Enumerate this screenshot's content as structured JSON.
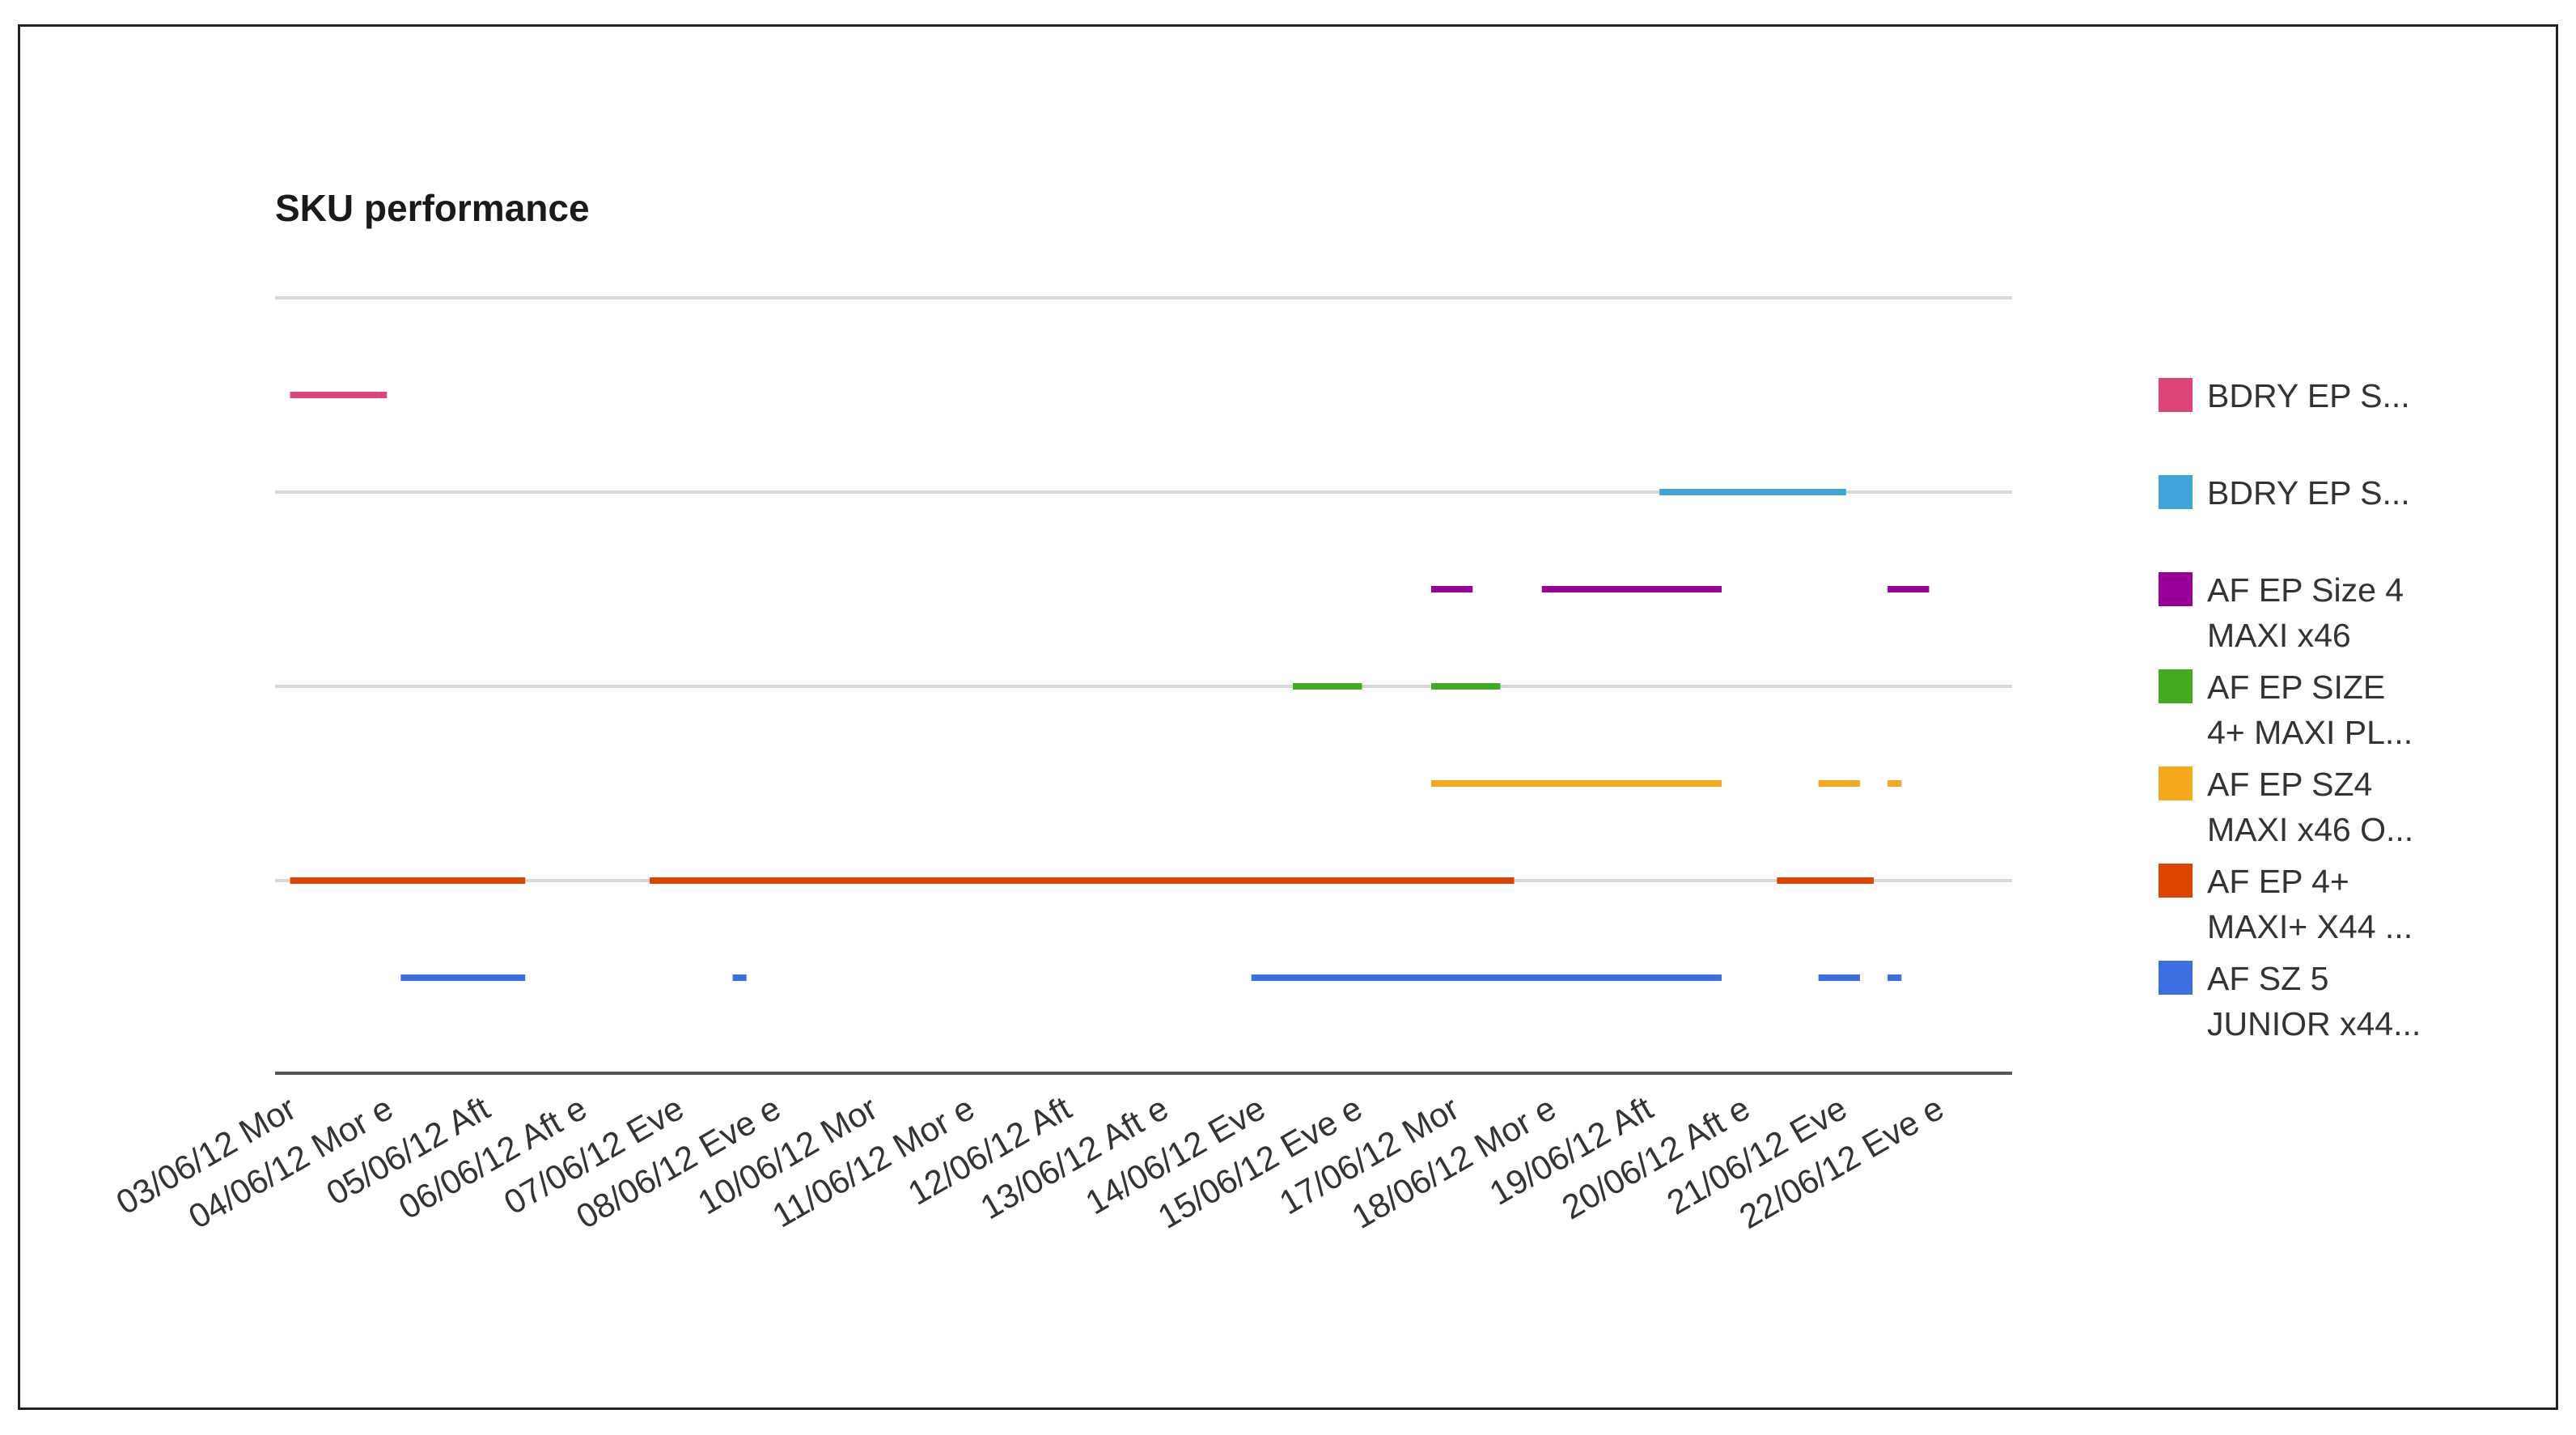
{
  "chart_data": {
    "type": "line",
    "title": "SKU performance",
    "xlabel": "",
    "ylabel": "",
    "grid": true,
    "legend_position": "right",
    "categories": [
      "03/06/12 Mor",
      "04/06/12 Mor e",
      "05/06/12 Aft",
      "06/06/12 Aft e",
      "07/06/12 Eve",
      "08/06/12 Eve e",
      "10/06/12 Mor",
      "11/06/12 Mor e",
      "12/06/12 Aft",
      "13/06/12 Aft e",
      "14/06/12 Eve",
      "15/06/12 Eve e",
      "17/06/12 Mor",
      "18/06/12 Mor e",
      "19/06/12 Aft",
      "20/06/12 Aft e",
      "21/06/12 Eve",
      "22/06/12 Eve e"
    ],
    "series": [
      {
        "name": "BDRY EP S...",
        "legend_lines": [
          "BDRY EP S..."
        ],
        "color": "#dd4477",
        "segments": [
          [
            0.1,
            1.5
          ]
        ]
      },
      {
        "name": "BDRY EP S...",
        "legend_lines": [
          "BDRY EP S..."
        ],
        "color": "#3fa5d8",
        "segments": [
          [
            19.9,
            22.6
          ]
        ]
      },
      {
        "name": "AF EP Size 4 MAXI x46",
        "legend_lines": [
          "AF EP Size 4",
          "MAXI x46"
        ],
        "color": "#990099",
        "segments": [
          [
            16.6,
            17.2
          ],
          [
            18.2,
            20.8
          ],
          [
            23.2,
            23.8
          ]
        ]
      },
      {
        "name": "AF EP SIZE 4+ MAXI PL...",
        "legend_lines": [
          "AF EP SIZE",
          "4+ MAXI PL..."
        ],
        "color": "#44aa22",
        "segments": [
          [
            14.6,
            15.6
          ],
          [
            16.6,
            17.6
          ]
        ]
      },
      {
        "name": "AF EP SZ4 MAXI x46 O...",
        "legend_lines": [
          "AF EP SZ4",
          "MAXI x46 O..."
        ],
        "color": "#f4a81d",
        "segments": [
          [
            16.6,
            20.8
          ],
          [
            22.2,
            22.8
          ],
          [
            23.2,
            23.4
          ]
        ]
      },
      {
        "name": "AF EP 4+ MAXI+ X44 ...",
        "legend_lines": [
          "AF EP 4+",
          "MAXI+ X44 ..."
        ],
        "color": "#dd4400",
        "segments": [
          [
            0.1,
            3.5
          ],
          [
            5.3,
            17.8
          ],
          [
            21.6,
            23.0
          ]
        ]
      },
      {
        "name": "AF SZ 5 JUNIOR x44...",
        "legend_lines": [
          "AF SZ 5",
          "JUNIOR x44..."
        ],
        "color": "#3d6fe0",
        "segments": [
          [
            1.7,
            3.5
          ],
          [
            6.5,
            6.7
          ],
          [
            14.0,
            20.8
          ],
          [
            22.2,
            22.8
          ],
          [
            23.2,
            23.4
          ]
        ]
      }
    ]
  }
}
